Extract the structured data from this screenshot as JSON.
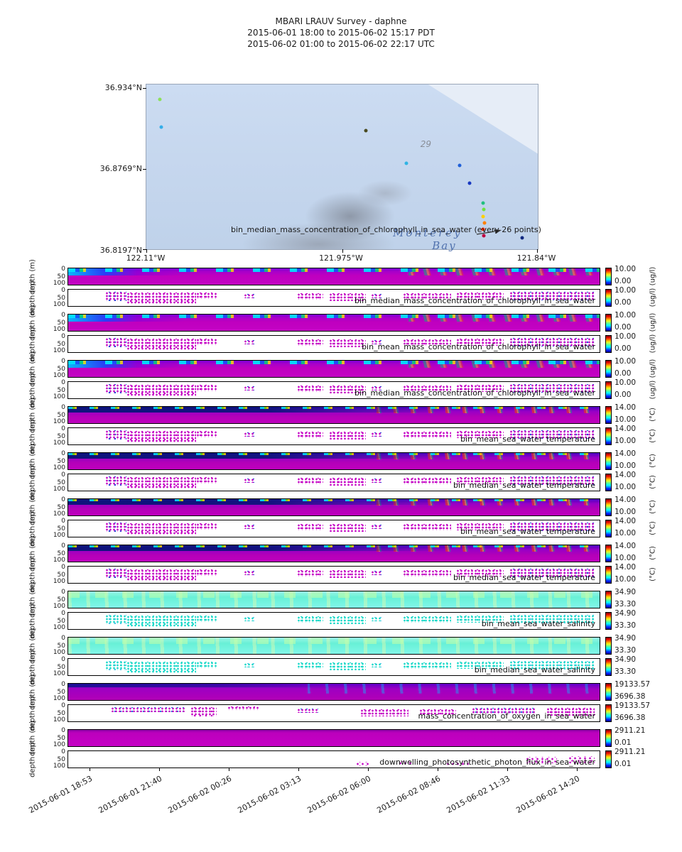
{
  "title": {
    "line1": "MBARI LRAUV Survey - daphne",
    "line2": "2015-06-01 18:00  to  2015-06-02 15:17 PDT",
    "line3": "2015-06-02 01:00  to  2015-06-02 22:17 UTC"
  },
  "map": {
    "lat_labels": [
      "36.934°N",
      "36.8769°N",
      "36.8197°N"
    ],
    "lon_labels": [
      "122.11°W",
      "121.975°W",
      "121.84°W"
    ],
    "annotation": "bin_median_mass_concentration_of_chlorophyll_in_sea_water (every 26 points)",
    "place_name": "Monterey",
    "place_name2": "Bay",
    "contour_label": "29",
    "points": [
      {
        "x": 3.5,
        "y": 9,
        "color": "#8ce05a"
      },
      {
        "x": 3.8,
        "y": 26,
        "color": "#35aee8"
      },
      {
        "x": 56,
        "y": 28,
        "color": "#4a4a20"
      },
      {
        "x": 66.5,
        "y": 48,
        "color": "#30b4e4"
      },
      {
        "x": 80,
        "y": 49,
        "color": "#2060d8"
      },
      {
        "x": 82.5,
        "y": 60,
        "color": "#1838c0"
      },
      {
        "x": 86,
        "y": 72,
        "color": "#20c080"
      },
      {
        "x": 86.2,
        "y": 76,
        "color": "#70e040"
      },
      {
        "x": 86.0,
        "y": 80,
        "color": "#ffd000"
      },
      {
        "x": 86.3,
        "y": 84,
        "color": "#ff8000"
      },
      {
        "x": 86.1,
        "y": 88,
        "color": "#ff3000"
      },
      {
        "x": 86.2,
        "y": 92,
        "color": "#c00040"
      },
      {
        "x": 96,
        "y": 93,
        "color": "#102880"
      }
    ]
  },
  "chart_data": {
    "type": "heatmap",
    "title": "MBARI LRAUV Survey - daphne",
    "time_range_pdt": "2015-06-01 18:00 to 2015-06-02 15:17 PDT",
    "time_range_utc": "2015-06-02 01:00 to 2015-06-02 22:17 UTC",
    "x_tick_labels": [
      "2015-06-01 18:53",
      "2015-06-01 21:40",
      "2015-06-02 00:26",
      "2015-06-02 03:13",
      "2015-06-02 06:00",
      "2015-06-02 08:46",
      "2015-06-02 11:33",
      "2015-06-02 14:20"
    ],
    "x_tick_positions_pct": [
      4.1,
      17.2,
      30.2,
      43.3,
      56.4,
      69.4,
      82.5,
      95.6
    ],
    "y_axis_label": "depth (m)",
    "y_ticks": [
      "0",
      "50",
      "100"
    ],
    "grid": false,
    "panels": [
      {
        "name": "bin_median_mass_concentration_of_chlorophyll_in_sea_water",
        "units": "(ug/l)",
        "cbar_max": "10.00",
        "cbar_min": "0.00",
        "style": "chl"
      },
      {
        "name": "bin_mean_mass_concentration_of_chlorophyll_in_sea_water",
        "units": "(ug/l)",
        "cbar_max": "10.00",
        "cbar_min": "0.00",
        "style": "chl"
      },
      {
        "name": "bin_median_mass_concentration_of_chlorophyll_in_sea_water",
        "units": "(ug/l)",
        "cbar_max": "10.00",
        "cbar_min": "0.00",
        "style": "chl"
      },
      {
        "name": "bin_mean_sea_water_temperature",
        "units": "(°C)",
        "cbar_max": "14.00",
        "cbar_min": "10.00",
        "style": "temp"
      },
      {
        "name": "bin_median_sea_water_temperature",
        "units": "(°C)",
        "cbar_max": "14.00",
        "cbar_min": "10.00",
        "style": "temp"
      },
      {
        "name": "bin_mean_sea_water_temperature",
        "units": "(°C)",
        "cbar_max": "14.00",
        "cbar_min": "10.00",
        "style": "temp"
      },
      {
        "name": "bin_median_sea_water_temperature",
        "units": "(°C)",
        "cbar_max": "14.00",
        "cbar_min": "10.00",
        "style": "temp"
      },
      {
        "name": "bin_mean_sea_water_salinity",
        "units": "",
        "cbar_max": "34.90",
        "cbar_min": "33.30",
        "style": "sal"
      },
      {
        "name": "bin_median_sea_water_salinity",
        "units": "",
        "cbar_max": "34.90",
        "cbar_min": "33.30",
        "style": "sal"
      },
      {
        "name": "mass_concentration_of_oxygen_in_sea_water",
        "units": "",
        "cbar_max": "19133.57",
        "cbar_min": "3696.38",
        "style": "oxy"
      },
      {
        "name": "downwelling_photosynthetic_photon_flux_in_sea_water",
        "units": "",
        "cbar_max": "2911.21",
        "cbar_min": "0.01",
        "style": "par"
      }
    ]
  }
}
